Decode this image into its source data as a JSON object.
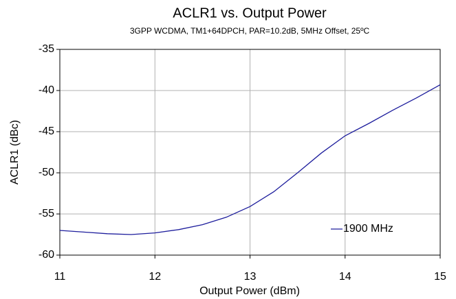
{
  "chart_data": {
    "type": "line",
    "title": "ACLR1 vs. Output Power",
    "subtitle": "3GPP WCDMA, TM1+64DPCH, PAR=10.2dB, 5MHz Offset, 25ºC",
    "x_label": "Output Power (dBm)",
    "y_label": "ACLR1 (dBc)",
    "x": [
      11,
      11.25,
      11.5,
      11.75,
      12,
      12.25,
      12.5,
      12.75,
      13,
      13.25,
      13.5,
      13.75,
      14,
      14.25,
      14.5,
      14.75,
      15
    ],
    "series": [
      {
        "name": "1900 MHz",
        "color": "#1c1c9c",
        "values": [
          -57.0,
          -57.2,
          -57.4,
          -57.5,
          -57.3,
          -56.9,
          -56.3,
          -55.4,
          -54.1,
          -52.3,
          -50.0,
          -47.6,
          -45.5,
          -44.0,
          -42.4,
          -40.9,
          -39.3
        ]
      }
    ],
    "xlim": [
      11,
      15
    ],
    "xticks": [
      11,
      12,
      13,
      14,
      15
    ],
    "ylim": [
      -60,
      -35
    ],
    "yticks": [
      -35,
      -40,
      -45,
      -50,
      -55,
      -60
    ],
    "grid": true,
    "legend": "lower right"
  }
}
